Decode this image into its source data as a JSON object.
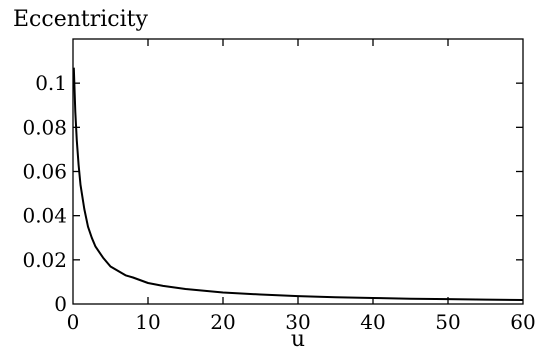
{
  "chart_data": {
    "type": "line",
    "title": "",
    "xlabel": "u",
    "ylabel": "Eccentricity",
    "xlim": [
      0,
      60
    ],
    "ylim": [
      0,
      0.12
    ],
    "x_ticks": [
      0,
      10,
      20,
      30,
      40,
      50,
      60
    ],
    "x_tick_labels": [
      "0",
      "10",
      "20",
      "30",
      "40",
      "50",
      "60"
    ],
    "y_ticks": [
      0,
      0.02,
      0.04,
      0.06,
      0.08,
      0.1
    ],
    "y_tick_labels": [
      "0",
      "0.02",
      "0.04",
      "0.06",
      "0.08",
      "0.1"
    ],
    "grid": false,
    "legend": "none",
    "series": [
      {
        "color": "#000000",
        "x": [
          0.1,
          0.3,
          0.5,
          0.75,
          1,
          1.5,
          2,
          2.5,
          3,
          4,
          5,
          6,
          7,
          8,
          10,
          12,
          15,
          20,
          25,
          30,
          35,
          40,
          45,
          50,
          55,
          60
        ],
        "y": [
          0.107,
          0.087,
          0.074,
          0.063,
          0.054,
          0.043,
          0.035,
          0.03,
          0.026,
          0.021,
          0.017,
          0.015,
          0.013,
          0.012,
          0.0095,
          0.0082,
          0.0068,
          0.0052,
          0.0043,
          0.0036,
          0.0031,
          0.0027,
          0.0024,
          0.0022,
          0.002,
          0.0018
        ]
      }
    ]
  }
}
